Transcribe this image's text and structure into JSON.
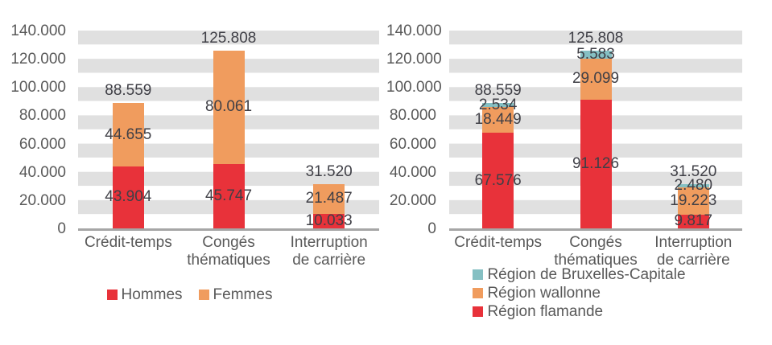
{
  "colors": {
    "red": "#e8323a",
    "orange": "#f09c5e",
    "teal": "#85c0c3",
    "band_gray": "#e0e0e0",
    "axis_gray": "#a6a6a6",
    "tick_text": "#595959",
    "label_text": "#3f3f46"
  },
  "chart_data": [
    {
      "type": "bar",
      "stacked": true,
      "title": "",
      "xlabel": "",
      "ylabel": "",
      "ylim": [
        0,
        140000
      ],
      "grid": "horizontal-bands-10k",
      "categories": [
        "Crédit-temps",
        "Congés thématiques",
        "Interruption de carrière"
      ],
      "category_label_lines": [
        [
          "Crédit-temps"
        ],
        [
          "Congés",
          "thématiques"
        ],
        [
          "Interruption",
          "de carrière"
        ]
      ],
      "series": [
        {
          "name": "Hommes",
          "color_key": "red",
          "values": [
            43904,
            45747,
            10033
          ],
          "value_labels": [
            "43.904",
            "45.747",
            "10.033"
          ]
        },
        {
          "name": "Femmes",
          "color_key": "orange",
          "values": [
            44655,
            80061,
            21487
          ],
          "value_labels": [
            "44.655",
            "80.061",
            "21.487"
          ]
        }
      ],
      "totals": [
        88559,
        125808,
        31520
      ],
      "total_labels": [
        "88.559",
        "125.808",
        "31.520"
      ],
      "y_axis": {
        "max": 140000,
        "ticks": [
          {
            "value": 0,
            "label": "0"
          },
          {
            "value": 20000,
            "label": "20.000"
          },
          {
            "value": 40000,
            "label": "40.000"
          },
          {
            "value": 60000,
            "label": "60.000"
          },
          {
            "value": 80000,
            "label": "80.000"
          },
          {
            "value": 100000,
            "label": "100.000"
          },
          {
            "value": 120000,
            "label": "120.000"
          },
          {
            "value": 140000,
            "label": "140.000"
          }
        ]
      },
      "legend": {
        "position": "bottom-center",
        "layout": "row",
        "items": [
          {
            "label": "Hommes",
            "color_key": "red"
          },
          {
            "label": "Femmes",
            "color_key": "orange"
          }
        ]
      }
    },
    {
      "type": "bar",
      "stacked": true,
      "title": "",
      "xlabel": "",
      "ylabel": "",
      "ylim": [
        0,
        140000
      ],
      "grid": "horizontal-bands-10k",
      "categories": [
        "Crédit-temps",
        "Congés thématiques",
        "Interruption de carrière"
      ],
      "category_label_lines": [
        [
          "Crédit-temps"
        ],
        [
          "Congés",
          "thématiques"
        ],
        [
          "Interruption",
          "de carrière"
        ]
      ],
      "series": [
        {
          "name": "Région flamande",
          "color_key": "red",
          "values": [
            67576,
            91126,
            9817
          ],
          "value_labels": [
            "67.576",
            "91.126",
            "9.817"
          ]
        },
        {
          "name": "Région wallonne",
          "color_key": "orange",
          "values": [
            18449,
            29099,
            19223
          ],
          "value_labels": [
            "18.449",
            "29.099",
            "19.223"
          ]
        },
        {
          "name": "Région de Bruxelles-Capitale",
          "color_key": "teal",
          "values": [
            2534,
            5583,
            2480
          ],
          "value_labels": [
            "2.534",
            "5.583",
            "2.480"
          ]
        }
      ],
      "totals": [
        88559,
        125808,
        31520
      ],
      "total_labels": [
        "88.559",
        "125.808",
        "31.520"
      ],
      "y_axis": {
        "max": 140000,
        "ticks": [
          {
            "value": 0,
            "label": "0"
          },
          {
            "value": 20000,
            "label": "20.000"
          },
          {
            "value": 40000,
            "label": "40.000"
          },
          {
            "value": 60000,
            "label": "60.000"
          },
          {
            "value": 80000,
            "label": "80.000"
          },
          {
            "value": 100000,
            "label": "100.000"
          },
          {
            "value": 120000,
            "label": "120.000"
          },
          {
            "value": 140000,
            "label": "140.000"
          }
        ]
      },
      "legend": {
        "position": "bottom-center",
        "layout": "column",
        "items": [
          {
            "label": "Région de Bruxelles-Capitale",
            "color_key": "teal"
          },
          {
            "label": "Région wallonne",
            "color_key": "orange"
          },
          {
            "label": "Région flamande",
            "color_key": "red"
          }
        ]
      }
    }
  ]
}
